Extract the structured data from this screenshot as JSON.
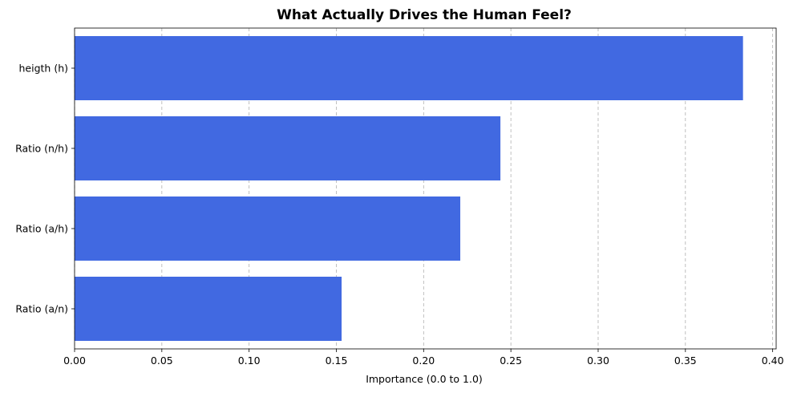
{
  "chart_data": {
    "type": "bar",
    "orientation": "horizontal",
    "title": "What Actually Drives the Human Feel?",
    "xlabel": "Importance (0.0 to 1.0)",
    "ylabel": "",
    "categories": [
      "heigth (h)",
      "Ratio (n/h)",
      "Ratio (a/h)",
      "Ratio (a/n)"
    ],
    "values": [
      0.383,
      0.244,
      0.221,
      0.153
    ],
    "xlim": [
      0.0,
      0.402
    ],
    "xticks": [
      0.0,
      0.05,
      0.1,
      0.15,
      0.2,
      0.25,
      0.3,
      0.35,
      0.4
    ],
    "xtick_labels": [
      "0.00",
      "0.05",
      "0.10",
      "0.15",
      "0.20",
      "0.25",
      "0.30",
      "0.35",
      "0.40"
    ],
    "grid": "x-axis dashed",
    "bar_color": "#4169e1",
    "grid_color": "#b0b0b0"
  }
}
